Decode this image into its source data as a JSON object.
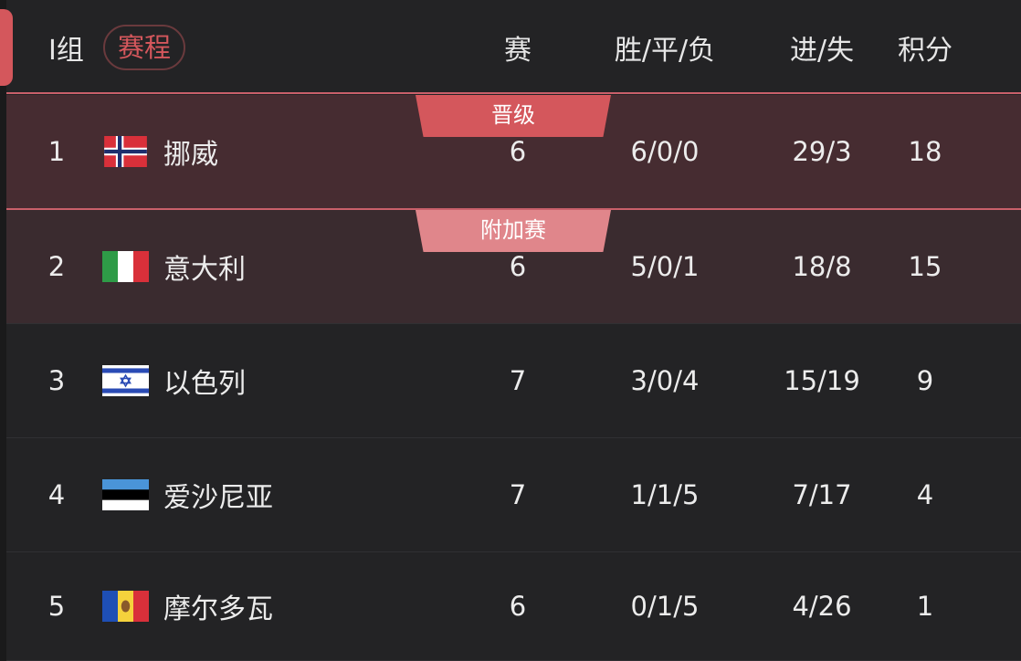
{
  "header": {
    "group": "I组",
    "schedule_button": "赛程",
    "col_played": "赛",
    "col_wdl": "胜/平/负",
    "col_goals": "进/失",
    "col_points": "积分"
  },
  "colors": {
    "accent": "#d4575c",
    "qualify_badge": "#d4575c",
    "playoff_badge": "#e0868b"
  },
  "rows": [
    {
      "rank": "1",
      "flag": "norway-flag",
      "name": "挪威",
      "played": "6",
      "wdl": "6/0/0",
      "goals": "29/3",
      "points": "18",
      "badge": "晋级"
    },
    {
      "rank": "2",
      "flag": "italy-flag",
      "name": "意大利",
      "played": "6",
      "wdl": "5/0/1",
      "goals": "18/8",
      "points": "15",
      "badge": "附加赛"
    },
    {
      "rank": "3",
      "flag": "israel-flag",
      "name": "以色列",
      "played": "7",
      "wdl": "3/0/4",
      "goals": "15/19",
      "points": "9"
    },
    {
      "rank": "4",
      "flag": "estonia-flag",
      "name": "爱沙尼亚",
      "played": "7",
      "wdl": "1/1/5",
      "goals": "7/17",
      "points": "4"
    },
    {
      "rank": "5",
      "flag": "moldova-flag",
      "name": "摩尔多瓦",
      "played": "6",
      "wdl": "0/1/5",
      "goals": "4/26",
      "points": "1"
    }
  ]
}
